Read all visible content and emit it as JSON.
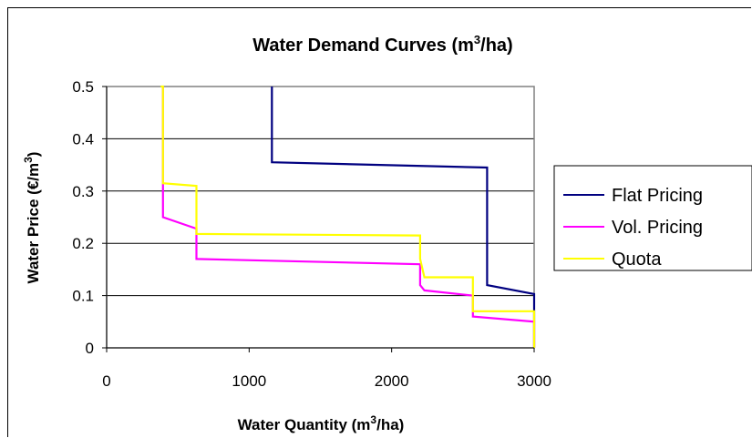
{
  "chart_data": {
    "type": "line",
    "title": "Water Demand Curves (m³/ha)",
    "title_parts": {
      "pre": "Water Demand Curves (m",
      "sup": "3",
      "post": "/ha)"
    },
    "xlabel": "Water Quantity (m³/ha)",
    "xlabel_parts": {
      "pre": "Water Quantity (m",
      "sup": "3",
      "post": "/ha)"
    },
    "ylabel": "Water Price (€/m³)",
    "ylabel_parts": {
      "pre": "Water Price (€/m",
      "sup": "3",
      "post": ")"
    },
    "xlim": [
      0,
      3000
    ],
    "ylim": [
      0,
      0.5
    ],
    "xticks": [
      0,
      1000,
      2000,
      3000
    ],
    "xtick_labels": [
      "0",
      "1000",
      "2000",
      "3000"
    ],
    "yticks": [
      0,
      0.1,
      0.2,
      0.3,
      0.4,
      0.5
    ],
    "ytick_labels": [
      "0",
      "0.1",
      "0.2",
      "0.3",
      "0.4",
      "0.5"
    ],
    "grid": "horizontal",
    "plot_background": "#ffffff",
    "legend_position": "right",
    "series": [
      {
        "name": "Flat Pricing",
        "color": "#000080",
        "points": [
          [
            1160,
            0.5
          ],
          [
            1160,
            0.355
          ],
          [
            2670,
            0.345
          ],
          [
            2670,
            0.12
          ],
          [
            3000,
            0.103
          ],
          [
            3000,
            0
          ]
        ]
      },
      {
        "name": "Vol. Pricing",
        "color": "#ff00ff",
        "points": [
          [
            395,
            0.5
          ],
          [
            395,
            0.25
          ],
          [
            630,
            0.228
          ],
          [
            630,
            0.17
          ],
          [
            2200,
            0.16
          ],
          [
            2200,
            0.12
          ],
          [
            2230,
            0.11
          ],
          [
            2570,
            0.1
          ],
          [
            2570,
            0.06
          ],
          [
            3000,
            0.05
          ],
          [
            3000,
            0
          ]
        ]
      },
      {
        "name": "Quota",
        "color": "#ffff00",
        "points": [
          [
            380,
            0.5
          ],
          [
            395,
            0.5
          ],
          [
            395,
            0.315
          ],
          [
            630,
            0.31
          ],
          [
            630,
            0.218
          ],
          [
            2200,
            0.215
          ],
          [
            2200,
            0.17
          ],
          [
            2230,
            0.135
          ],
          [
            2570,
            0.135
          ],
          [
            2570,
            0.07
          ],
          [
            3000,
            0.07
          ],
          [
            3000,
            0
          ]
        ]
      }
    ]
  }
}
